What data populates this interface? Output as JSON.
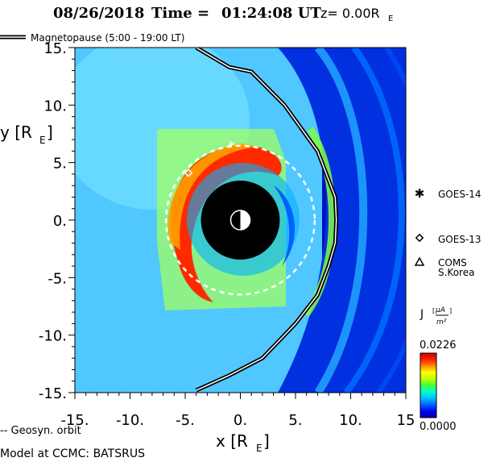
{
  "header": {
    "date": "08/26/2018",
    "time_label": "Time =",
    "time": "01:24:08 UT",
    "z_label": "z= 0.00R",
    "z_sub": "E"
  },
  "legend": {
    "magnetopause": "Magnetopause (5:00 - 19:00 LT)",
    "geosync": "-- Geosyn. orbit"
  },
  "footer": {
    "model": "Model at CCMC: BATSRUS"
  },
  "satellites": [
    {
      "name": "GOES-14",
      "symbol": "asterisk",
      "x": -0.8,
      "y": 6.5
    },
    {
      "name": "GOES-13",
      "symbol": "diamond",
      "x": -4.7,
      "y": 4.1
    },
    {
      "name": "COMS",
      "name2": "S.Korea",
      "symbol": "triangle"
    }
  ],
  "colorbar": {
    "label": "J",
    "unit_num": "μA",
    "unit_den": "m²",
    "max_label": "0.0226",
    "min_label": "0.0000",
    "colors": [
      "#0000a0",
      "#0000ff",
      "#0060ff",
      "#00c0ff",
      "#00ffd0",
      "#40ff40",
      "#c0ff00",
      "#ffff00",
      "#ff9000",
      "#ff2000",
      "#d00000"
    ]
  },
  "chart_data": {
    "type": "heatmap",
    "title": "08/26/2018 Time = 01:24:08 UT z= 0.00R_E",
    "xlabel": "x [R",
    "xlabel_sub": "E",
    "ylabel": "y [R",
    "ylabel_sub": "E",
    "xlim": [
      -15,
      15
    ],
    "ylim": [
      -15,
      15
    ],
    "x_ticks": [
      -15,
      -10,
      -5,
      0,
      5,
      10,
      15
    ],
    "x_tick_labels": [
      "-15.",
      "-10.",
      "-5.",
      "0.",
      "5.",
      "10.",
      "15"
    ],
    "y_ticks": [
      15,
      10,
      5,
      0,
      -5,
      -10,
      -15
    ],
    "y_tick_labels": [
      "15.",
      "10.",
      "5.",
      "0.",
      "-5.",
      "-10.",
      "-15."
    ],
    "value_range": [
      0.0,
      0.0226
    ],
    "geosync_radius": 6.6,
    "inner_boundary_radius": 3.5,
    "magnetopause": [
      [
        -4,
        15
      ],
      [
        -1,
        13.3
      ],
      [
        1,
        12.9
      ],
      [
        4,
        10
      ],
      [
        7,
        6
      ],
      [
        8.6,
        2
      ],
      [
        8.7,
        0
      ],
      [
        8.6,
        -2
      ],
      [
        8,
        -4
      ],
      [
        7,
        -6.5
      ],
      [
        5,
        -9
      ],
      [
        2,
        -12
      ],
      [
        -1,
        -13.5
      ],
      [
        -4,
        -14.8
      ]
    ]
  }
}
